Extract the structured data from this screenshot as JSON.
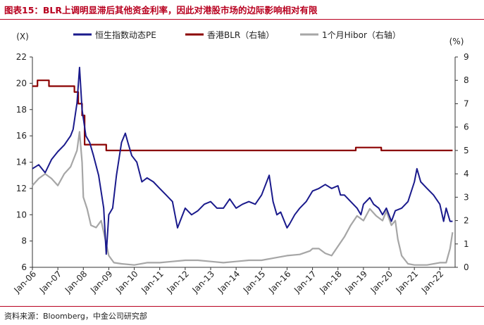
{
  "header": {
    "title": "图表15：BLR上调明显滞后其他资金利率，因此对港股市场的边际影响相对有限"
  },
  "footer": {
    "source": "资料来源：Bloomberg，中金公司研究部"
  },
  "colors": {
    "pe": "#1a1a8c",
    "blr": "#8b0000",
    "hibor": "#a6a6a6",
    "accent": "#b8001f"
  },
  "chart_data": {
    "type": "line",
    "title": "",
    "left_axis_label": "(X)",
    "right_axis_label": "(%)",
    "ylim_left": [
      6,
      22
    ],
    "yticks_left": [
      6,
      8,
      10,
      12,
      14,
      16,
      18,
      20,
      22
    ],
    "ylim_right": [
      0,
      9
    ],
    "yticks_right": [
      0,
      1,
      2,
      3,
      4,
      5,
      6,
      7,
      8,
      9
    ],
    "x_ticks": [
      "Jan-06",
      "Jan-07",
      "Jan-08",
      "Jan-09",
      "Jan-10",
      "Jan-11",
      "Jan-12",
      "Jan-13",
      "Jan-14",
      "Jan-15",
      "Jan-16",
      "Jan-17",
      "Jan-18",
      "Jan-19",
      "Jan-20",
      "Jan-21",
      "Jan-22"
    ],
    "x_range": [
      2006.0,
      2022.6
    ],
    "legend": [
      "恒生指数动态PE",
      "香港BLR（右轴）",
      "1个月Hibor（右轴）"
    ],
    "series": [
      {
        "name": "恒生指数动态PE",
        "axis": "left",
        "color": "#1a1a8c",
        "x": [
          2006.0,
          2006.25,
          2006.5,
          2006.75,
          2007.0,
          2007.25,
          2007.5,
          2007.6,
          2007.75,
          2007.85,
          2007.95,
          2008.1,
          2008.25,
          2008.4,
          2008.6,
          2008.8,
          2008.9,
          2009.0,
          2009.15,
          2009.3,
          2009.5,
          2009.65,
          2009.75,
          2009.9,
          2010.1,
          2010.3,
          2010.5,
          2010.75,
          2011.0,
          2011.25,
          2011.5,
          2011.7,
          2011.8,
          2012.0,
          2012.25,
          2012.5,
          2012.75,
          2013.0,
          2013.25,
          2013.5,
          2013.75,
          2014.0,
          2014.25,
          2014.5,
          2014.75,
          2015.0,
          2015.3,
          2015.45,
          2015.6,
          2015.75,
          2016.0,
          2016.1,
          2016.3,
          2016.5,
          2016.75,
          2017.0,
          2017.25,
          2017.5,
          2017.75,
          2018.0,
          2018.1,
          2018.25,
          2018.5,
          2018.75,
          2018.9,
          2019.0,
          2019.25,
          2019.4,
          2019.6,
          2019.75,
          2019.9,
          2020.1,
          2020.25,
          2020.5,
          2020.75,
          2021.0,
          2021.1,
          2021.25,
          2021.5,
          2021.75,
          2022.0,
          2022.15,
          2022.25,
          2022.4,
          2022.5
        ],
        "y": [
          13.5,
          13.8,
          13.2,
          14.2,
          14.8,
          15.3,
          16.0,
          16.5,
          18.5,
          21.2,
          18.0,
          16.0,
          15.5,
          14.5,
          13.0,
          10.5,
          7.0,
          10.0,
          10.5,
          13.0,
          15.5,
          16.2,
          15.5,
          14.5,
          14.0,
          12.5,
          12.8,
          12.5,
          12.0,
          11.5,
          11.0,
          9.0,
          9.5,
          10.5,
          10.0,
          10.3,
          10.8,
          11.0,
          10.5,
          10.5,
          11.2,
          10.5,
          10.8,
          11.0,
          10.8,
          11.5,
          13.0,
          11.0,
          10.0,
          10.2,
          9.0,
          9.3,
          10.0,
          10.5,
          11.0,
          11.8,
          12.0,
          12.3,
          12.0,
          12.2,
          11.5,
          11.5,
          11.0,
          10.5,
          10.0,
          10.8,
          11.3,
          10.8,
          10.5,
          10.0,
          10.5,
          9.5,
          10.3,
          10.5,
          11.0,
          12.5,
          13.5,
          12.5,
          12.0,
          11.5,
          10.8,
          9.5,
          10.5,
          9.5,
          9.5
        ]
      },
      {
        "name": "香港BLR（右轴）",
        "axis": "right",
        "color": "#8b0000",
        "x": [
          2006.0,
          2006.2,
          2006.2,
          2006.65,
          2006.65,
          2007.65,
          2007.65,
          2007.8,
          2007.8,
          2007.95,
          2007.95,
          2008.05,
          2008.05,
          2008.2,
          2008.2,
          2008.9,
          2008.9,
          2018.7,
          2018.7,
          2019.7,
          2019.7,
          2022.5
        ],
        "y": [
          7.75,
          7.75,
          8.0,
          8.0,
          7.75,
          7.75,
          7.5,
          7.5,
          7.0,
          7.0,
          6.5,
          6.5,
          5.25,
          5.25,
          5.25,
          5.25,
          5.0,
          5.0,
          5.125,
          5.125,
          5.0,
          5.0
        ]
      },
      {
        "name": "1个月Hibor（右轴）",
        "axis": "right",
        "color": "#a6a6a6",
        "x": [
          2006.0,
          2006.25,
          2006.5,
          2006.75,
          2007.0,
          2007.25,
          2007.5,
          2007.75,
          2007.85,
          2007.95,
          2008.0,
          2008.15,
          2008.3,
          2008.5,
          2008.7,
          2008.8,
          2009.0,
          2009.2,
          2009.5,
          2010.0,
          2010.5,
          2011.0,
          2011.5,
          2012.0,
          2012.5,
          2013.0,
          2013.5,
          2014.0,
          2014.5,
          2015.0,
          2015.5,
          2016.0,
          2016.5,
          2016.9,
          2017.0,
          2017.25,
          2017.5,
          2017.75,
          2018.0,
          2018.25,
          2018.5,
          2018.75,
          2019.0,
          2019.25,
          2019.5,
          2019.75,
          2019.9,
          2020.1,
          2020.25,
          2020.35,
          2020.5,
          2020.75,
          2021.0,
          2021.5,
          2022.0,
          2022.25,
          2022.4,
          2022.5
        ],
        "y": [
          3.5,
          3.8,
          4.0,
          3.8,
          3.5,
          4.0,
          4.3,
          5.0,
          5.8,
          4.5,
          3.0,
          2.5,
          1.8,
          1.7,
          2.0,
          1.5,
          0.5,
          0.2,
          0.15,
          0.1,
          0.2,
          0.2,
          0.25,
          0.3,
          0.3,
          0.25,
          0.2,
          0.25,
          0.3,
          0.3,
          0.4,
          0.5,
          0.55,
          0.7,
          0.8,
          0.8,
          0.6,
          0.5,
          0.9,
          1.3,
          1.8,
          2.2,
          2.0,
          2.5,
          2.2,
          2.0,
          2.4,
          1.8,
          2.0,
          1.2,
          0.5,
          0.15,
          0.1,
          0.1,
          0.2,
          0.2,
          0.8,
          1.5
        ]
      }
    ]
  }
}
